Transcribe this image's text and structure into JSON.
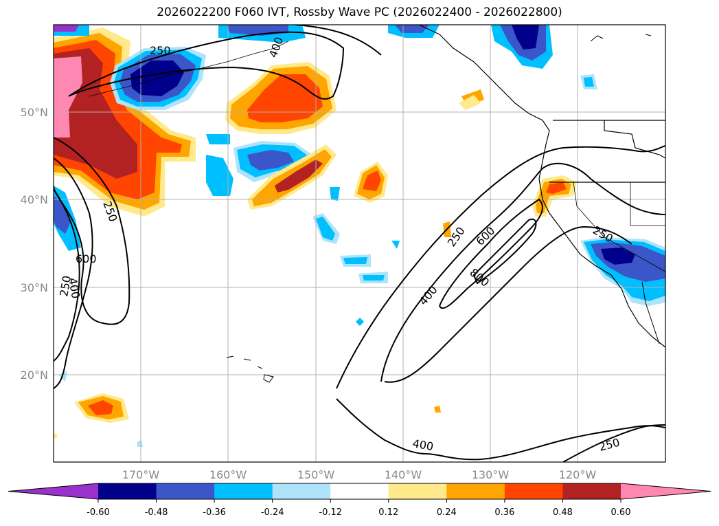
{
  "title": "2026022200 F060 IVT, Rossby Wave PC (2026022400 - 2026022800)",
  "lat_labels": [
    "50°N",
    "40°N",
    "30°N",
    "20°N"
  ],
  "lon_labels": [
    "170°W",
    "160°W",
    "150°W",
    "140°W",
    "130°W",
    "120°W"
  ],
  "colorbar": {
    "ticks": [
      "-0.60",
      "-0.48",
      "-0.36",
      "-0.24",
      "-0.12",
      "0.12",
      "0.24",
      "0.36",
      "0.48",
      "0.60"
    ],
    "colors": [
      "#9932cc",
      "#00008b",
      "#3a56c8",
      "#00bfff",
      "#aee3fa",
      "#ffffff",
      "#ffe98a",
      "#ffa500",
      "#ff4500",
      "#b22222",
      "#ff88b2"
    ]
  },
  "contour_labels": [
    "250",
    "400",
    "250",
    "600",
    "400",
    "250",
    "250",
    "600",
    "800",
    "400",
    "250",
    "400",
    "250"
  ]
}
